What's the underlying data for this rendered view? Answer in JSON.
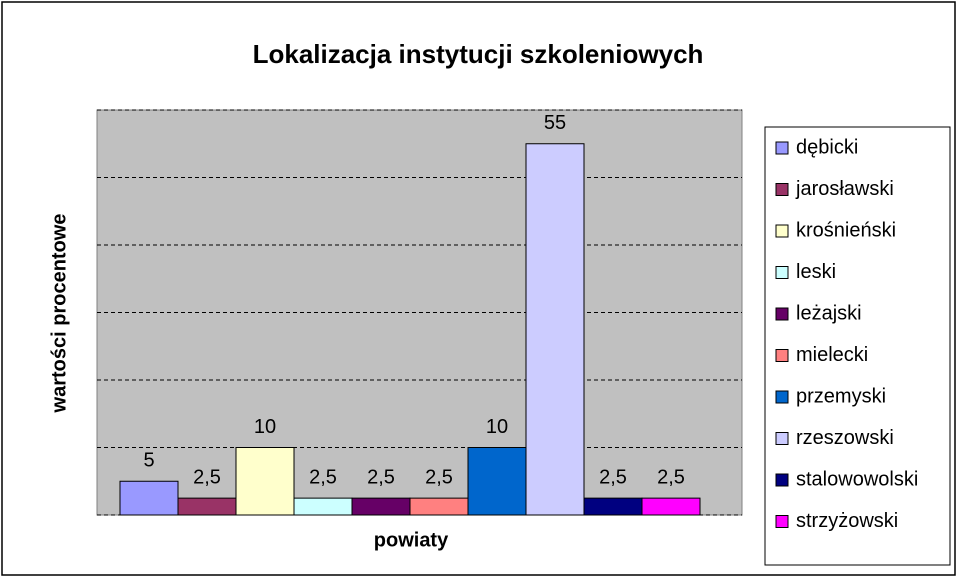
{
  "chart_data": {
    "type": "bar",
    "title": "Lokalizacja instytucji szkoleniowych",
    "x_label": "powiaty",
    "y_label": "wartości procentowe",
    "categories": [
      "dębicki",
      "jarosławski",
      "krośnieński",
      "leski",
      "leżajski",
      "mielecki",
      "przemyski",
      "rzeszowski",
      "stalowowolski",
      "strzyżowski"
    ],
    "values": [
      5,
      2.5,
      10,
      2.5,
      2.5,
      2.5,
      10,
      55,
      2.5,
      2.5
    ],
    "value_labels": [
      "5",
      "2,5",
      "10",
      "2,5",
      "2,5",
      "2,5",
      "10",
      "55",
      "2,5",
      "2,5"
    ],
    "colors": [
      "#9999ff",
      "#993366",
      "#ffffcc",
      "#ccffff",
      "#660066",
      "#ff8080",
      "#0066cc",
      "#ccccff",
      "#000080",
      "#ff00ff"
    ],
    "ylim": [
      0,
      60
    ],
    "yticks": [
      0,
      10,
      20,
      30,
      40,
      50,
      60
    ],
    "grid": true
  }
}
